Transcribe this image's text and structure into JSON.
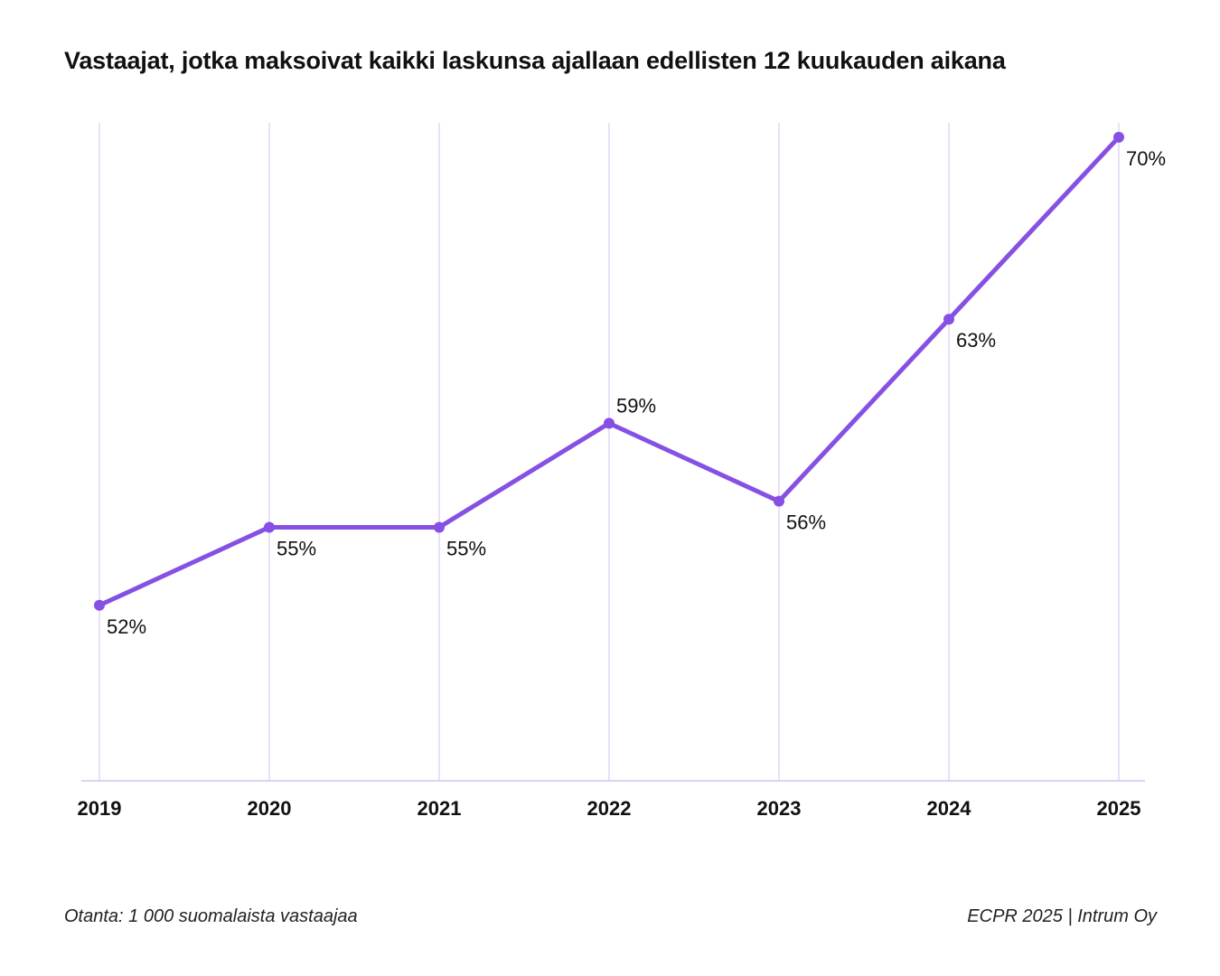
{
  "chart_data": {
    "type": "line",
    "title": "Vastaajat, jotka maksoivat kaikki laskunsa ajallaan edellisten 12 kuukauden aikana",
    "categories": [
      "2019",
      "2020",
      "2021",
      "2022",
      "2023",
      "2024",
      "2025"
    ],
    "series": [
      {
        "name": "Vastaajat",
        "values": [
          52,
          55,
          55,
          59,
          56,
          63,
          70
        ]
      }
    ],
    "data_labels": [
      "52%",
      "55%",
      "55%",
      "59%",
      "56%",
      "63%",
      "70%"
    ],
    "label_positions": [
      "below-right",
      "below",
      "below",
      "above",
      "below",
      "below",
      "below-right"
    ],
    "xlabel": "",
    "ylabel": "",
    "ylim": [
      45.25,
      70.55
    ],
    "grid": "vertical",
    "colors": {
      "line": "#8550e3",
      "grid": "#d3c1f6",
      "axis": "#d3c1f6"
    }
  },
  "footer": {
    "sample": "Otanta: 1 000 suomalaista vastaajaa",
    "source": "ECPR 2025 | Intrum Oy"
  }
}
